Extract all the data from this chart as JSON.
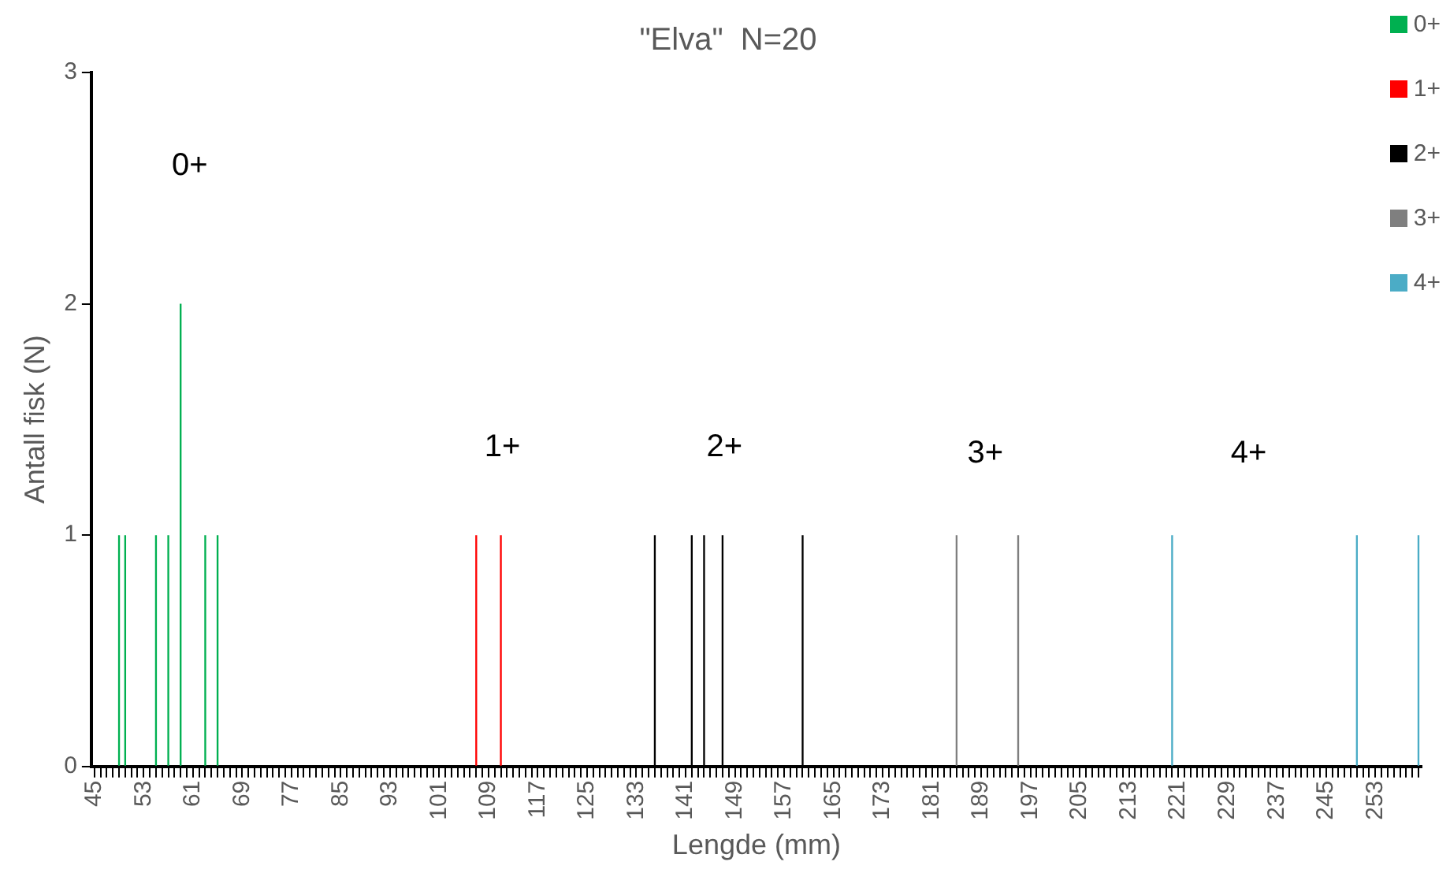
{
  "chart_data": {
    "type": "bar",
    "title": "\"Elva\"  N=20",
    "xlabel": "Lengde (mm)",
    "ylabel": "Antall fisk (N)",
    "categories": [
      "45",
      null,
      null,
      null,
      null,
      null,
      null,
      null,
      "53",
      null,
      null,
      null,
      null,
      null,
      null,
      null,
      "61",
      null,
      null,
      null,
      null,
      null,
      null,
      null,
      "69",
      null,
      null,
      null,
      null,
      null,
      null,
      null,
      "77",
      null,
      null,
      null,
      null,
      null,
      null,
      null,
      "85",
      null,
      null,
      null,
      null,
      null,
      null,
      null,
      "93",
      null,
      null,
      null,
      null,
      null,
      null,
      null,
      "101",
      null,
      null,
      null,
      null,
      null,
      null,
      null,
      "109",
      null,
      null,
      null,
      null,
      null,
      null,
      null,
      "117",
      null,
      null,
      null,
      null,
      null,
      null,
      null,
      "125",
      null,
      null,
      null,
      null,
      null,
      null,
      null,
      "133",
      null,
      null,
      null,
      null,
      null,
      null,
      null,
      "141",
      null,
      null,
      null,
      null,
      null,
      null,
      null,
      "149",
      null,
      null,
      null,
      null,
      null,
      null,
      null,
      "157",
      null,
      null,
      null,
      null,
      null,
      null,
      null,
      "165",
      null,
      null,
      null,
      null,
      null,
      null,
      null,
      "173",
      null,
      null,
      null,
      null,
      null,
      null,
      null,
      "181",
      null,
      null,
      null,
      null,
      null,
      null,
      null,
      "189",
      null,
      null,
      null,
      null,
      null,
      null,
      null,
      "197",
      null,
      null,
      null,
      null,
      null,
      null,
      null,
      "205",
      null,
      null,
      null,
      null,
      null,
      null,
      null,
      "213",
      null,
      null,
      null,
      null,
      null,
      null,
      null,
      "221",
      null,
      null,
      null,
      null,
      null,
      null,
      null,
      "229",
      null,
      null,
      null,
      null,
      null,
      null,
      null,
      "237",
      null,
      null,
      null,
      null,
      null,
      null,
      null,
      "245",
      null,
      null,
      null,
      null,
      null,
      null,
      null,
      "253",
      null,
      null,
      null,
      null,
      null,
      null,
      null
    ],
    "series": [
      {
        "name": "0+",
        "color": "#00b050",
        "values": [
          0,
          0,
          0,
          0,
          1,
          1,
          0,
          0,
          0,
          0,
          1,
          0,
          1,
          0,
          2,
          0,
          0,
          0,
          1,
          0,
          1,
          0,
          0,
          0,
          0,
          0,
          0,
          0,
          0,
          0,
          0,
          0,
          0,
          0,
          0,
          0,
          0,
          0,
          0,
          0,
          0,
          0,
          0,
          0,
          0,
          0,
          0,
          0,
          0,
          0,
          0,
          0,
          0,
          0,
          0,
          0,
          0,
          0,
          0,
          0,
          0,
          0,
          0,
          0,
          0,
          0,
          0,
          0,
          0,
          0,
          0,
          0,
          0,
          0,
          0,
          0,
          0,
          0,
          0,
          0,
          0,
          0,
          0,
          0,
          0,
          0,
          0,
          0,
          0,
          0,
          0,
          0,
          0,
          0,
          0,
          0,
          0,
          0,
          0,
          0,
          0,
          0,
          0,
          0,
          0,
          0,
          0,
          0,
          0,
          0,
          0,
          0,
          0,
          0,
          0,
          0,
          0,
          0,
          0,
          0,
          0,
          0,
          0,
          0,
          0,
          0,
          0,
          0,
          0,
          0,
          0,
          0,
          0,
          0,
          0,
          0,
          0,
          0,
          0,
          0,
          0,
          0,
          0,
          0,
          0,
          0,
          0,
          0,
          0,
          0,
          0,
          0,
          0,
          0,
          0,
          0,
          0,
          0,
          0,
          0,
          0,
          0,
          0,
          0,
          0,
          0,
          0,
          0,
          0,
          0,
          0,
          0,
          0,
          0,
          0,
          0,
          0,
          0,
          0,
          0,
          0,
          0,
          0,
          0,
          0,
          0,
          0,
          0,
          0,
          0,
          0,
          0,
          0,
          0,
          0,
          0,
          0,
          0,
          0,
          0,
          0,
          0,
          0,
          0,
          0,
          0,
          0,
          0,
          0,
          0,
          0,
          0,
          0,
          0,
          0,
          0
        ]
      },
      {
        "name": "1+",
        "color": "#ff0000",
        "values": [
          0,
          0,
          0,
          0,
          0,
          0,
          0,
          0,
          0,
          0,
          0,
          0,
          0,
          0,
          0,
          0,
          0,
          0,
          0,
          0,
          0,
          0,
          0,
          0,
          0,
          0,
          0,
          0,
          0,
          0,
          0,
          0,
          0,
          0,
          0,
          0,
          0,
          0,
          0,
          0,
          0,
          0,
          0,
          0,
          0,
          0,
          0,
          0,
          0,
          0,
          0,
          0,
          0,
          0,
          0,
          0,
          0,
          0,
          0,
          0,
          0,
          0,
          1,
          0,
          0,
          0,
          1,
          0,
          0,
          0,
          0,
          0,
          0,
          0,
          0,
          0,
          0,
          0,
          0,
          0,
          0,
          0,
          0,
          0,
          0,
          0,
          0,
          0,
          0,
          0,
          0,
          0,
          0,
          0,
          0,
          0,
          0,
          0,
          0,
          0,
          0,
          0,
          0,
          0,
          0,
          0,
          0,
          0,
          0,
          0,
          0,
          0,
          0,
          0,
          0,
          0,
          0,
          0,
          0,
          0,
          0,
          0,
          0,
          0,
          0,
          0,
          0,
          0,
          0,
          0,
          0,
          0,
          0,
          0,
          0,
          0,
          0,
          0,
          0,
          0,
          0,
          0,
          0,
          0,
          0,
          0,
          0,
          0,
          0,
          0,
          0,
          0,
          0,
          0,
          0,
          0,
          0,
          0,
          0,
          0,
          0,
          0,
          0,
          0,
          0,
          0,
          0,
          0,
          0,
          0,
          0,
          0,
          0,
          0,
          0,
          0,
          0,
          0,
          0,
          0,
          0,
          0,
          0,
          0,
          0,
          0,
          0,
          0,
          0,
          0,
          0,
          0,
          0,
          0,
          0,
          0,
          0,
          0,
          0,
          0,
          0,
          0,
          0,
          0,
          0,
          0,
          0,
          0,
          0,
          0,
          0,
          0,
          0,
          0,
          0,
          0
        ]
      },
      {
        "name": "2+",
        "color": "#000000",
        "values": [
          0,
          0,
          0,
          0,
          0,
          0,
          0,
          0,
          0,
          0,
          0,
          0,
          0,
          0,
          0,
          0,
          0,
          0,
          0,
          0,
          0,
          0,
          0,
          0,
          0,
          0,
          0,
          0,
          0,
          0,
          0,
          0,
          0,
          0,
          0,
          0,
          0,
          0,
          0,
          0,
          0,
          0,
          0,
          0,
          0,
          0,
          0,
          0,
          0,
          0,
          0,
          0,
          0,
          0,
          0,
          0,
          0,
          0,
          0,
          0,
          0,
          0,
          0,
          0,
          0,
          0,
          0,
          0,
          0,
          0,
          0,
          0,
          0,
          0,
          0,
          0,
          0,
          0,
          0,
          0,
          0,
          0,
          0,
          0,
          0,
          0,
          0,
          0,
          0,
          0,
          0,
          1,
          0,
          0,
          0,
          0,
          0,
          1,
          0,
          1,
          0,
          0,
          1,
          0,
          0,
          0,
          0,
          0,
          0,
          0,
          0,
          0,
          0,
          0,
          0,
          1,
          0,
          0,
          0,
          0,
          0,
          0,
          0,
          0,
          0,
          0,
          0,
          0,
          0,
          0,
          0,
          0,
          0,
          0,
          0,
          0,
          0,
          0,
          0,
          0,
          0,
          0,
          0,
          0,
          0,
          0,
          0,
          0,
          0,
          0,
          0,
          0,
          0,
          0,
          0,
          0,
          0,
          0,
          0,
          0,
          0,
          0,
          0,
          0,
          0,
          0,
          0,
          0,
          0,
          0,
          0,
          0,
          0,
          0,
          0,
          0,
          0,
          0,
          0,
          0,
          0,
          0,
          0,
          0,
          0,
          0,
          0,
          0,
          0,
          0,
          0,
          0,
          0,
          0,
          0,
          0,
          0,
          0,
          0,
          0,
          0,
          0,
          0,
          0,
          0,
          0,
          0,
          0,
          0,
          0,
          0,
          0,
          0,
          0,
          0,
          0
        ]
      },
      {
        "name": "3+",
        "color": "#7f7f7f",
        "values": [
          0,
          0,
          0,
          0,
          0,
          0,
          0,
          0,
          0,
          0,
          0,
          0,
          0,
          0,
          0,
          0,
          0,
          0,
          0,
          0,
          0,
          0,
          0,
          0,
          0,
          0,
          0,
          0,
          0,
          0,
          0,
          0,
          0,
          0,
          0,
          0,
          0,
          0,
          0,
          0,
          0,
          0,
          0,
          0,
          0,
          0,
          0,
          0,
          0,
          0,
          0,
          0,
          0,
          0,
          0,
          0,
          0,
          0,
          0,
          0,
          0,
          0,
          0,
          0,
          0,
          0,
          0,
          0,
          0,
          0,
          0,
          0,
          0,
          0,
          0,
          0,
          0,
          0,
          0,
          0,
          0,
          0,
          0,
          0,
          0,
          0,
          0,
          0,
          0,
          0,
          0,
          0,
          0,
          0,
          0,
          0,
          0,
          0,
          0,
          0,
          0,
          0,
          0,
          0,
          0,
          0,
          0,
          0,
          0,
          0,
          0,
          0,
          0,
          0,
          0,
          0,
          0,
          0,
          0,
          0,
          0,
          0,
          0,
          0,
          0,
          0,
          0,
          0,
          0,
          0,
          0,
          0,
          0,
          0,
          0,
          0,
          0,
          0,
          0,
          0,
          1,
          0,
          0,
          0,
          0,
          0,
          0,
          0,
          0,
          0,
          1,
          0,
          0,
          0,
          0,
          0,
          0,
          0,
          0,
          0,
          0,
          0,
          0,
          0,
          0,
          0,
          0,
          0,
          0,
          0,
          0,
          0,
          0,
          0,
          0,
          0,
          0,
          0,
          0,
          0,
          0,
          0,
          0,
          0,
          0,
          0,
          0,
          0,
          0,
          0,
          0,
          0,
          0,
          0,
          0,
          0,
          0,
          0,
          0,
          0,
          0,
          0,
          0,
          0,
          0,
          0,
          0,
          0,
          0,
          0,
          0,
          0,
          0,
          0,
          0,
          0
        ]
      },
      {
        "name": "4+",
        "color": "#4bacc6",
        "values": [
          0,
          0,
          0,
          0,
          0,
          0,
          0,
          0,
          0,
          0,
          0,
          0,
          0,
          0,
          0,
          0,
          0,
          0,
          0,
          0,
          0,
          0,
          0,
          0,
          0,
          0,
          0,
          0,
          0,
          0,
          0,
          0,
          0,
          0,
          0,
          0,
          0,
          0,
          0,
          0,
          0,
          0,
          0,
          0,
          0,
          0,
          0,
          0,
          0,
          0,
          0,
          0,
          0,
          0,
          0,
          0,
          0,
          0,
          0,
          0,
          0,
          0,
          0,
          0,
          0,
          0,
          0,
          0,
          0,
          0,
          0,
          0,
          0,
          0,
          0,
          0,
          0,
          0,
          0,
          0,
          0,
          0,
          0,
          0,
          0,
          0,
          0,
          0,
          0,
          0,
          0,
          0,
          0,
          0,
          0,
          0,
          0,
          0,
          0,
          0,
          0,
          0,
          0,
          0,
          0,
          0,
          0,
          0,
          0,
          0,
          0,
          0,
          0,
          0,
          0,
          0,
          0,
          0,
          0,
          0,
          0,
          0,
          0,
          0,
          0,
          0,
          0,
          0,
          0,
          0,
          0,
          0,
          0,
          0,
          0,
          0,
          0,
          0,
          0,
          0,
          0,
          0,
          0,
          0,
          0,
          0,
          0,
          0,
          0,
          0,
          0,
          0,
          0,
          0,
          0,
          0,
          0,
          0,
          0,
          0,
          0,
          0,
          0,
          0,
          0,
          0,
          0,
          0,
          0,
          0,
          0,
          0,
          0,
          0,
          0,
          1,
          0,
          0,
          0,
          0,
          0,
          0,
          0,
          0,
          0,
          0,
          0,
          0,
          0,
          0,
          0,
          0,
          0,
          0,
          0,
          0,
          0,
          0,
          0,
          0,
          0,
          0,
          0,
          0,
          0,
          1,
          0,
          0,
          0,
          0,
          0,
          0,
          0,
          0,
          0,
          1
        ]
      }
    ],
    "stacked": true,
    "ylim": [
      0,
      3
    ],
    "yticks": [
      0,
      1,
      2,
      3
    ],
    "grid": false,
    "legend": "top right",
    "annotations": [
      "0+",
      "1+",
      "2+",
      "3+",
      "4+"
    ]
  }
}
